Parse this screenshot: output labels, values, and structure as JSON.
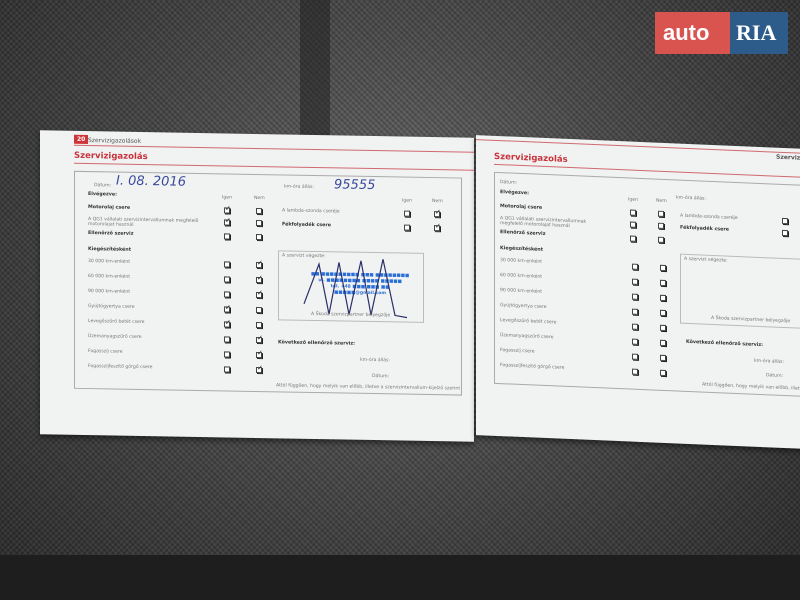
{
  "watermark": {
    "brand_left": "auto",
    "brand_right": "RIA",
    "colors": {
      "left": "#d9534f",
      "right": "#2d5c8a"
    }
  },
  "left_page": {
    "page_number": "20",
    "header": "Szervizigazolások",
    "title": "Szervizigazolás",
    "date_label": "Dátum:",
    "date_value": "I. 08. 2016",
    "km_label": "km-óra állás:",
    "km_value": "95555",
    "done_label": "Elvégezve:",
    "yes": "Igen",
    "no": "Nem",
    "rows": [
      {
        "label": "Motorolaj csere",
        "bold": true,
        "yes": true,
        "no": false
      },
      {
        "label": "A QG1 vállalati szervizintervallumnak megfelelő motorolajat használ",
        "bold": false,
        "yes": true,
        "no": false
      },
      {
        "label": "Ellenőrző szerviz",
        "bold": true,
        "yes": false,
        "no": false
      }
    ],
    "extra_label": "Kiegészítésként",
    "extra_rows": [
      {
        "label": "30 000 km-enként",
        "yes": false,
        "no": true
      },
      {
        "label": "60 000 km-enként",
        "yes": false,
        "no": true
      },
      {
        "label": "90 000 km-enként",
        "yes": false,
        "no": true
      },
      {
        "label": "Gyújtógyertya csere",
        "yes": true,
        "no": false
      },
      {
        "label": "Levegőszűrő betét csere",
        "yes": true,
        "no": false
      },
      {
        "label": "Üzemanyagszűrő csere",
        "yes": false,
        "no": true
      },
      {
        "label": "Fogasszíj csere",
        "yes": false,
        "no": true
      },
      {
        "label": "Fogasszíjfeszítő görgő csere",
        "yes": false,
        "no": true
      }
    ],
    "right_rows": [
      {
        "label": "A lambda-szonda cseréje",
        "bold": false,
        "yes": false,
        "no": true
      },
      {
        "label": "Fékfolyadék csere",
        "bold": true,
        "yes": false,
        "no": true
      }
    ],
    "service_by": "A szervizt végezte:",
    "stamp_caption": "A Škoda szervizpartner bélyegzője",
    "stamp_text": "SERVICE STAMP",
    "next_label": "Következő ellenőrző szerviz:",
    "next_km": "km-óra állás:",
    "next_date": "Dátum:",
    "footnote": "Attól függően, hogy melyik van előbb, illetve a szervizintervallum-kijelző szerint"
  },
  "right_page": {
    "header": "Szerviz",
    "title": "Szervizigazolás",
    "date_label": "Dátum:",
    "km_label": "km-óra állás:",
    "done_label": "Elvégezve:",
    "yes": "Igen",
    "no": "Nem",
    "rows": [
      "Motorolaj csere",
      "A QG1 vállalati szervizintervallumnak megfelelő motorolajat használ",
      "Ellenőrző szerviz"
    ],
    "extra_label": "Kiegészítésként",
    "extra_rows": [
      "30 000 km-enként",
      "60 000 km-enként",
      "90 000 km-enként",
      "Gyújtógyertya csere",
      "Levegőszűrő betét csere",
      "Üzemanyagszűrő csere",
      "Fogasszíj csere",
      "Fogasszíjfeszítő görgő csere"
    ],
    "right_rows": [
      "A lambda-szonda cseréje",
      "Fékfolyadék csere"
    ],
    "service_by": "A szervizt végezte:",
    "stamp_caption": "A Škoda szervizpartner bélyegzője",
    "next_label": "Következő ellenőrző szerviz:",
    "next_km": "km-óra állás:",
    "next_date": "Dátum:",
    "footnote": "Attól függően, hogy melyik van előbb, illetve a sz"
  }
}
